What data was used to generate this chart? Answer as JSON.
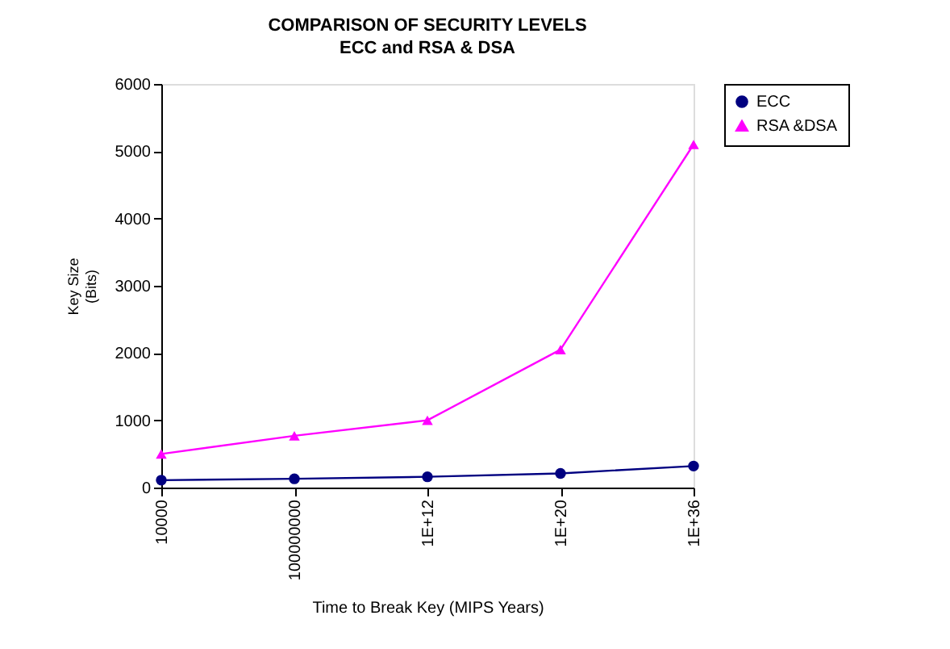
{
  "chart_data": {
    "type": "line",
    "title": "COMPARISON OF SECURITY LEVELS",
    "subtitle": "ECC and RSA & DSA",
    "xlabel": "Time to Break Key (MIPS Years)",
    "ylabel": "Key Size (Bits)",
    "categories": [
      "10000",
      "100000000",
      "1E+12",
      "1E+20",
      "1E+36"
    ],
    "series": [
      {
        "name": "ECC",
        "color": "#000080",
        "marker": "circle",
        "values": [
          110,
          130,
          160,
          210,
          320
        ]
      },
      {
        "name": "RSA &DSA",
        "color": "#ff00ff",
        "marker": "triangle",
        "values": [
          500,
          770,
          1000,
          2050,
          5100
        ]
      }
    ],
    "ylim": [
      0,
      6000
    ],
    "yticks": [
      0,
      1000,
      2000,
      3000,
      4000,
      5000,
      6000
    ],
    "grid": false,
    "legend": "right"
  }
}
